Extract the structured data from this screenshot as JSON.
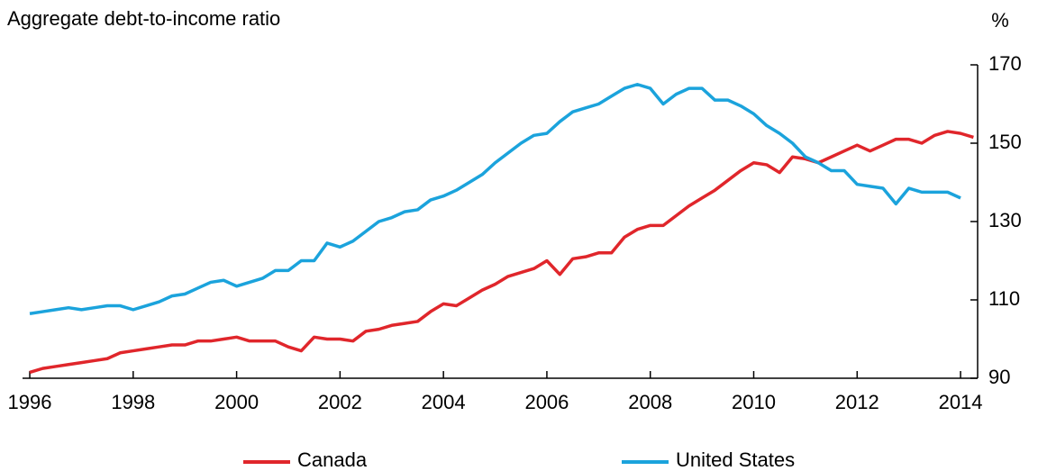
{
  "chart_data": {
    "type": "line",
    "title": "Aggregate debt-to-income ratio",
    "y_unit": "%",
    "x": [
      1996,
      1996.25,
      1996.5,
      1996.75,
      1997,
      1997.25,
      1997.5,
      1997.75,
      1998,
      1998.25,
      1998.5,
      1998.75,
      1999,
      1999.25,
      1999.5,
      1999.75,
      2000,
      2000.25,
      2000.5,
      2000.75,
      2001,
      2001.25,
      2001.5,
      2001.75,
      2002,
      2002.25,
      2002.5,
      2002.75,
      2003,
      2003.25,
      2003.5,
      2003.75,
      2004,
      2004.25,
      2004.5,
      2004.75,
      2005,
      2005.25,
      2005.5,
      2005.75,
      2006,
      2006.25,
      2006.5,
      2006.75,
      2007,
      2007.25,
      2007.5,
      2007.75,
      2008,
      2008.25,
      2008.5,
      2008.75,
      2009,
      2009.25,
      2009.5,
      2009.75,
      2010,
      2010.25,
      2010.5,
      2010.75,
      2011,
      2011.25,
      2011.5,
      2011.75,
      2012,
      2012.25,
      2012.5,
      2012.75,
      2013,
      2013.25,
      2013.5,
      2013.75,
      2014,
      2014.25
    ],
    "series": [
      {
        "name": "Canada",
        "color": "#e0262b",
        "values": [
          91.5,
          92.5,
          93,
          93.5,
          94,
          94.5,
          95,
          96.5,
          97,
          97.5,
          98,
          98.5,
          98.5,
          99.5,
          99.5,
          100,
          100.5,
          99.5,
          99.5,
          99.5,
          98,
          97,
          100.5,
          100,
          100,
          99.5,
          102,
          102.5,
          103.5,
          104,
          104.5,
          107,
          109,
          108.5,
          110.5,
          112.5,
          114,
          116,
          117,
          118,
          120,
          116.5,
          120.5,
          121,
          122,
          122,
          126,
          128,
          129,
          129,
          131.5,
          134,
          136,
          138,
          140.5,
          143,
          145,
          144.5,
          142.5,
          146.5,
          146,
          145,
          146.5,
          148,
          149.5,
          148,
          149.5,
          151,
          151,
          150,
          152,
          153,
          152.5,
          151.5
        ]
      },
      {
        "name": "United States",
        "color": "#1ba3dc",
        "values": [
          106.5,
          107,
          107.5,
          108,
          107.5,
          108,
          108.5,
          108.5,
          107.5,
          108.5,
          109.5,
          111,
          111.5,
          113,
          114.5,
          115,
          113.5,
          114.5,
          115.5,
          117.5,
          117.5,
          120,
          120,
          124.5,
          123.5,
          125,
          127.5,
          130,
          131,
          132.5,
          133,
          135.5,
          136.5,
          138,
          140,
          142,
          145,
          147.5,
          150,
          152,
          152.5,
          155.5,
          158,
          159,
          160,
          162,
          164,
          165,
          164,
          160,
          162.5,
          164,
          164,
          161,
          161,
          159.5,
          157.5,
          154.5,
          152.5,
          150,
          146.5,
          145,
          143,
          143,
          139.5,
          139,
          138.5,
          134.5,
          138.5,
          137.5,
          137.5,
          137.5,
          136,
          null
        ]
      }
    ],
    "xlim": [
      1995.86,
      2014.33
    ],
    "xticks": [
      1996,
      1998,
      2000,
      2002,
      2004,
      2006,
      2008,
      2010,
      2012,
      2014
    ],
    "ylim": [
      90,
      170
    ],
    "yticks": [
      90,
      110,
      130,
      150,
      170
    ]
  }
}
